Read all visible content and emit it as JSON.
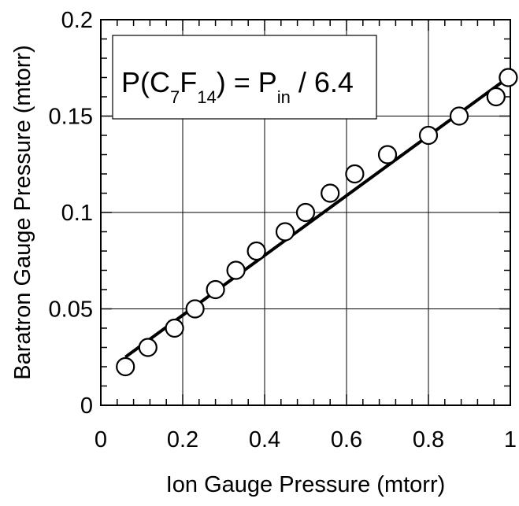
{
  "chart_data": {
    "type": "scatter",
    "xlabel": "Ion Gauge Pressure (mtorr)",
    "ylabel": "Baratron Gauge Pressure (mtorr)",
    "xlim": [
      0,
      1
    ],
    "ylim": [
      0,
      0.2
    ],
    "xticks": [
      "0",
      "0.2",
      "0.4",
      "0.6",
      "0.8",
      "1"
    ],
    "yticks": [
      "0",
      "0.05",
      "0.1",
      "0.15",
      "0.2"
    ],
    "grid": true,
    "annotation": {
      "prefix": "P(C",
      "sub1": "7",
      "mid1": "F",
      "sub2": "14",
      "mid2": ") = P",
      "sub3": "in",
      "suffix": " / 6.4",
      "placement": "top-left"
    },
    "series": [
      {
        "marker": "open-circle",
        "x": [
          0.06,
          0.115,
          0.18,
          0.23,
          0.28,
          0.33,
          0.38,
          0.45,
          0.5,
          0.56,
          0.62,
          0.7,
          0.8,
          0.875,
          0.965,
          0.995
        ],
        "y": [
          0.02,
          0.03,
          0.04,
          0.05,
          0.06,
          0.07,
          0.08,
          0.09,
          0.1,
          0.11,
          0.12,
          0.13,
          0.14,
          0.15,
          0.16,
          0.17
        ]
      }
    ],
    "fit_line": {
      "x": [
        0.06,
        0.995
      ],
      "y": [
        0.025,
        0.17
      ]
    }
  }
}
